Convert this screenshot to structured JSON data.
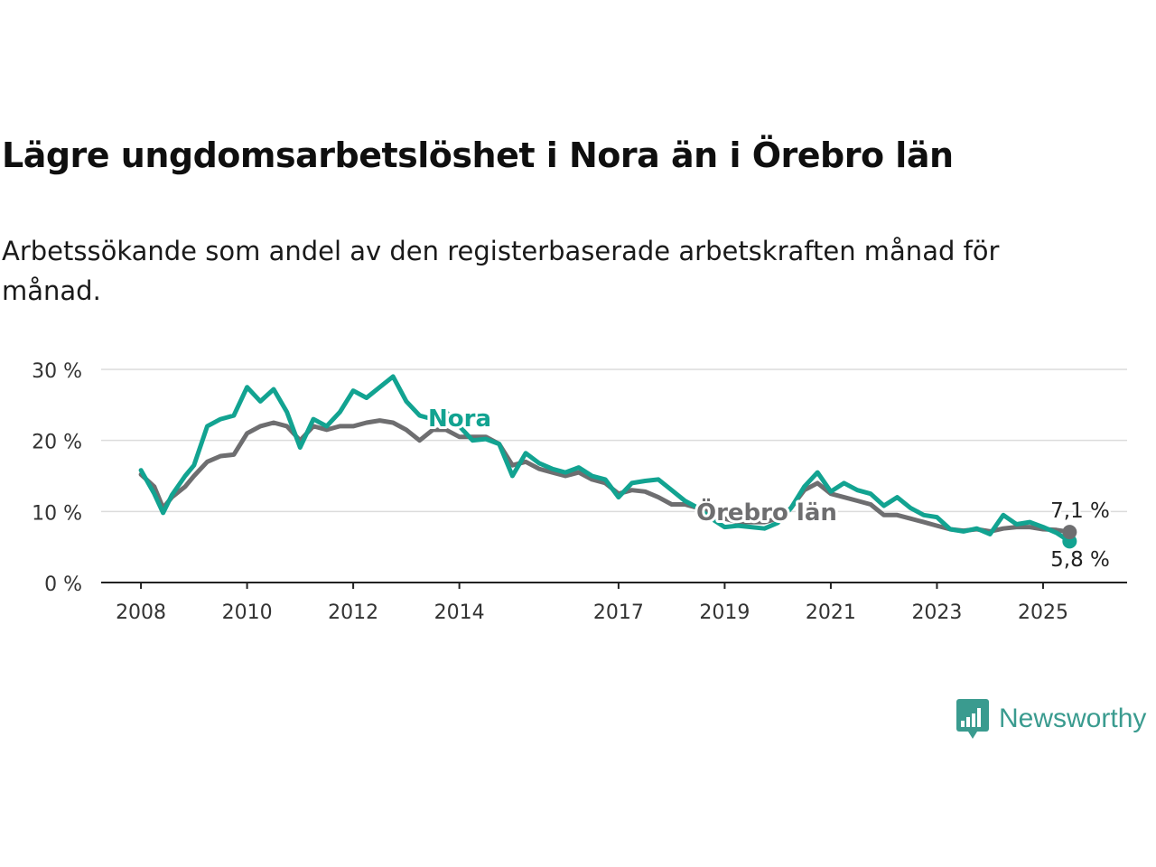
{
  "title": "Lägre ungdomsarbetslöshet i Nora än i Örebro län",
  "subtitle": "Arbetssökande som andel av den registerbaserade arbetskraften månad för månad.",
  "brand": {
    "name": "Newsworthy"
  },
  "colors": {
    "nora": "#12a391",
    "orebro": "#6e6e70",
    "grid": "#dcdcdc",
    "axis": "#222222",
    "brand": "#3a9b8f"
  },
  "chart_data": {
    "type": "line",
    "x_ticks": [
      "2008",
      "2010",
      "2012",
      "2014",
      "2017",
      "2019",
      "2021",
      "2023",
      "2025"
    ],
    "y_ticks": [
      "0 %",
      "10 %",
      "20 %",
      "30 %"
    ],
    "ylim": [
      0,
      30
    ],
    "xlim": [
      "2007-04",
      "2026-08"
    ],
    "grid": true,
    "series": [
      {
        "name": "Nora",
        "color": "#12a391",
        "end_label": "5,8 %",
        "points": [
          [
            "2008-01",
            15.8
          ],
          [
            "2008-04",
            12.5
          ],
          [
            "2008-06",
            9.8
          ],
          [
            "2008-08",
            12.3
          ],
          [
            "2008-11",
            15.0
          ],
          [
            "2009-01",
            16.5
          ],
          [
            "2009-04",
            22.0
          ],
          [
            "2009-07",
            23.0
          ],
          [
            "2009-10",
            23.5
          ],
          [
            "2010-01",
            27.5
          ],
          [
            "2010-04",
            25.5
          ],
          [
            "2010-07",
            27.2
          ],
          [
            "2010-10",
            24.0
          ],
          [
            "2011-01",
            19.0
          ],
          [
            "2011-04",
            23.0
          ],
          [
            "2011-07",
            22.0
          ],
          [
            "2011-10",
            24.0
          ],
          [
            "2012-01",
            27.0
          ],
          [
            "2012-04",
            26.0
          ],
          [
            "2012-07",
            27.5
          ],
          [
            "2012-10",
            29.0
          ],
          [
            "2013-01",
            25.5
          ],
          [
            "2013-04",
            23.5
          ],
          [
            "2013-07",
            23.0
          ],
          [
            "2013-10",
            24.0
          ],
          [
            "2014-01",
            22.0
          ],
          [
            "2014-04",
            20.0
          ],
          [
            "2014-07",
            20.2
          ],
          [
            "2014-10",
            19.5
          ],
          [
            "2015-01",
            15.0
          ],
          [
            "2015-04",
            18.2
          ],
          [
            "2015-07",
            16.8
          ],
          [
            "2015-10",
            16.0
          ],
          [
            "2016-01",
            15.5
          ],
          [
            "2016-04",
            16.2
          ],
          [
            "2016-07",
            15.0
          ],
          [
            "2016-10",
            14.5
          ],
          [
            "2017-01",
            12.0
          ],
          [
            "2017-04",
            14.0
          ],
          [
            "2017-07",
            14.3
          ],
          [
            "2017-10",
            14.5
          ],
          [
            "2018-01",
            13.0
          ],
          [
            "2018-04",
            11.5
          ],
          [
            "2018-07",
            10.5
          ],
          [
            "2018-10",
            9.0
          ],
          [
            "2019-01",
            7.8
          ],
          [
            "2019-04",
            8.0
          ],
          [
            "2019-07",
            7.8
          ],
          [
            "2019-10",
            7.6
          ],
          [
            "2020-01",
            8.4
          ],
          [
            "2020-04",
            10.5
          ],
          [
            "2020-07",
            13.5
          ],
          [
            "2020-10",
            15.5
          ],
          [
            "2021-01",
            12.8
          ],
          [
            "2021-04",
            14.0
          ],
          [
            "2021-07",
            13.0
          ],
          [
            "2021-10",
            12.5
          ],
          [
            "2022-01",
            10.8
          ],
          [
            "2022-04",
            12.0
          ],
          [
            "2022-07",
            10.5
          ],
          [
            "2022-10",
            9.5
          ],
          [
            "2023-01",
            9.2
          ],
          [
            "2023-04",
            7.5
          ],
          [
            "2023-07",
            7.2
          ],
          [
            "2023-10",
            7.6
          ],
          [
            "2024-01",
            6.8
          ],
          [
            "2024-04",
            9.5
          ],
          [
            "2024-07",
            8.2
          ],
          [
            "2024-10",
            8.5
          ],
          [
            "2025-01",
            7.8
          ],
          [
            "2025-04",
            7.0
          ],
          [
            "2025-07",
            5.8
          ]
        ]
      },
      {
        "name": "Örebro län",
        "color": "#6e6e70",
        "end_label": "7,1 %",
        "points": [
          [
            "2008-01",
            15.2
          ],
          [
            "2008-04",
            13.5
          ],
          [
            "2008-06",
            10.5
          ],
          [
            "2008-08",
            12.0
          ],
          [
            "2008-11",
            13.5
          ],
          [
            "2009-01",
            15.0
          ],
          [
            "2009-04",
            17.0
          ],
          [
            "2009-07",
            17.8
          ],
          [
            "2009-10",
            18.0
          ],
          [
            "2010-01",
            21.0
          ],
          [
            "2010-04",
            22.0
          ],
          [
            "2010-07",
            22.5
          ],
          [
            "2010-10",
            22.0
          ],
          [
            "2011-01",
            20.0
          ],
          [
            "2011-04",
            22.0
          ],
          [
            "2011-07",
            21.5
          ],
          [
            "2011-10",
            22.0
          ],
          [
            "2012-01",
            22.0
          ],
          [
            "2012-04",
            22.5
          ],
          [
            "2012-07",
            22.8
          ],
          [
            "2012-10",
            22.5
          ],
          [
            "2013-01",
            21.5
          ],
          [
            "2013-04",
            20.0
          ],
          [
            "2013-07",
            21.5
          ],
          [
            "2013-10",
            21.5
          ],
          [
            "2014-01",
            20.5
          ],
          [
            "2014-04",
            20.5
          ],
          [
            "2014-07",
            20.5
          ],
          [
            "2014-10",
            19.5
          ],
          [
            "2015-01",
            16.5
          ],
          [
            "2015-04",
            17.0
          ],
          [
            "2015-07",
            16.0
          ],
          [
            "2015-10",
            15.5
          ],
          [
            "2016-01",
            15.0
          ],
          [
            "2016-04",
            15.5
          ],
          [
            "2016-07",
            14.5
          ],
          [
            "2016-10",
            14.0
          ],
          [
            "2017-01",
            12.5
          ],
          [
            "2017-04",
            13.0
          ],
          [
            "2017-07",
            12.8
          ],
          [
            "2017-10",
            12.0
          ],
          [
            "2018-01",
            11.0
          ],
          [
            "2018-04",
            11.0
          ],
          [
            "2018-07",
            10.5
          ],
          [
            "2018-10",
            9.8
          ],
          [
            "2019-01",
            9.0
          ],
          [
            "2019-04",
            8.5
          ],
          [
            "2019-07",
            8.5
          ],
          [
            "2019-10",
            8.5
          ],
          [
            "2020-01",
            9.0
          ],
          [
            "2020-04",
            10.5
          ],
          [
            "2020-07",
            13.0
          ],
          [
            "2020-10",
            14.0
          ],
          [
            "2021-01",
            12.5
          ],
          [
            "2021-04",
            12.0
          ],
          [
            "2021-07",
            11.5
          ],
          [
            "2021-10",
            11.0
          ],
          [
            "2022-01",
            9.5
          ],
          [
            "2022-04",
            9.5
          ],
          [
            "2022-07",
            9.0
          ],
          [
            "2022-10",
            8.5
          ],
          [
            "2023-01",
            8.0
          ],
          [
            "2023-04",
            7.5
          ],
          [
            "2023-07",
            7.3
          ],
          [
            "2023-10",
            7.5
          ],
          [
            "2024-01",
            7.2
          ],
          [
            "2024-04",
            7.6
          ],
          [
            "2024-07",
            7.8
          ],
          [
            "2024-10",
            7.8
          ],
          [
            "2025-01",
            7.5
          ],
          [
            "2025-04",
            7.4
          ],
          [
            "2025-07",
            7.1
          ]
        ]
      }
    ]
  }
}
